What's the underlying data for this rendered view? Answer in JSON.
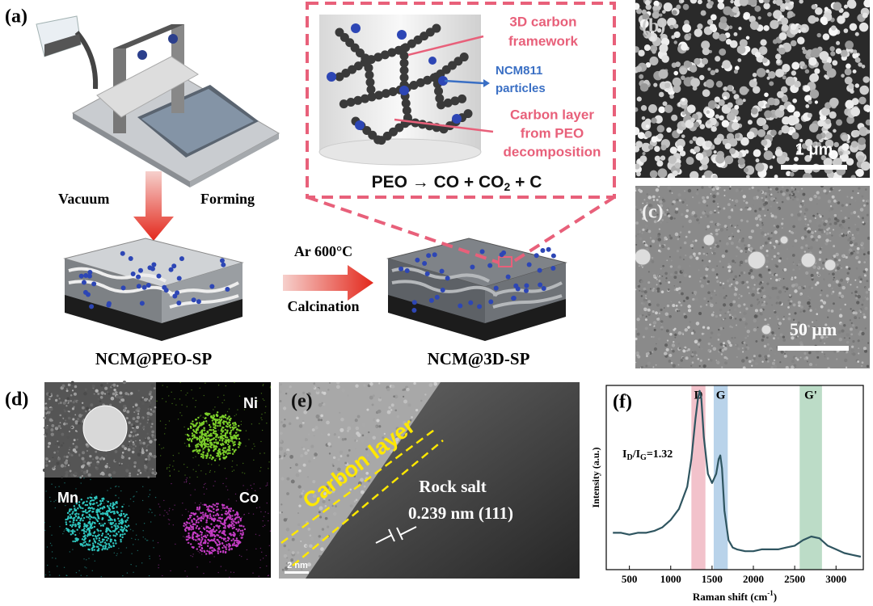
{
  "panel_a": {
    "label": "(a)",
    "steps": {
      "vacuum": "Vacuum",
      "forming": "Forming",
      "condition": "Ar  600°C",
      "process": "Calcination"
    },
    "samples": [
      "NCM@PEO-SP",
      "NCM@3D-SP"
    ],
    "inset": {
      "framework": [
        "3D carbon",
        "framework"
      ],
      "particles": [
        "NCM811",
        "particles"
      ],
      "carbon_layer": [
        "Carbon layer",
        "from PEO",
        "decomposition"
      ],
      "reaction": {
        "text": "PEO → CO + CO",
        "subscript": "2",
        "tail": " + C"
      }
    }
  },
  "panel_b": {
    "label": "(b)",
    "scale_bar": "1 μm"
  },
  "panel_c": {
    "label": "(c)",
    "scale_bar": "50 μm"
  },
  "panel_d": {
    "label": "(d)",
    "maps": [
      "Ni",
      "Mn",
      "Co"
    ]
  },
  "panel_e": {
    "label": "(e)",
    "carbon_layer": "Carbon layer",
    "phase": "Rock salt",
    "spacing": "0.239 nm (111)",
    "scale_bar": "2 nm"
  },
  "chart_data": {
    "type": "line",
    "label": "(f)",
    "x": [
      300,
      400,
      500,
      600,
      700,
      800,
      900,
      1000,
      1100,
      1200,
      1250,
      1300,
      1330,
      1350,
      1370,
      1400,
      1450,
      1500,
      1550,
      1580,
      1600,
      1620,
      1650,
      1700,
      1750,
      1800,
      1900,
      2000,
      2100,
      2200,
      2300,
      2400,
      2500,
      2600,
      2700,
      2800,
      2900,
      3000,
      3100,
      3200,
      3300
    ],
    "series": [
      {
        "color": "#2f5560",
        "values": [
          0.2,
          0.2,
          0.19,
          0.2,
          0.2,
          0.21,
          0.23,
          0.27,
          0.33,
          0.45,
          0.6,
          0.82,
          0.93,
          0.97,
          0.93,
          0.72,
          0.52,
          0.47,
          0.52,
          0.6,
          0.62,
          0.55,
          0.32,
          0.16,
          0.12,
          0.11,
          0.1,
          0.1,
          0.11,
          0.11,
          0.11,
          0.12,
          0.13,
          0.16,
          0.18,
          0.17,
          0.13,
          0.11,
          0.09,
          0.08,
          0.07
        ]
      }
    ],
    "xlim": [
      220,
      3330
    ],
    "ylim": [
      0,
      1
    ],
    "xticks": [
      500,
      1000,
      1500,
      2000,
      2500,
      3000
    ],
    "x_label": {
      "text": "Raman shift (cm",
      "superscript": "-1",
      "tail": ")"
    },
    "y_label": "Intensity (a.u.)",
    "bands": [
      {
        "name": "D",
        "range": [
          1250,
          1420
        ],
        "color": "#f2c2cb"
      },
      {
        "name": "G",
        "range": [
          1520,
          1690
        ],
        "color": "#b9d3ea"
      },
      {
        "name": "G'",
        "range": [
          2560,
          2830
        ],
        "color": "#bcdcc7"
      }
    ],
    "annotation": [
      "I",
      "D",
      "/I",
      "G",
      "=1.32"
    ]
  }
}
